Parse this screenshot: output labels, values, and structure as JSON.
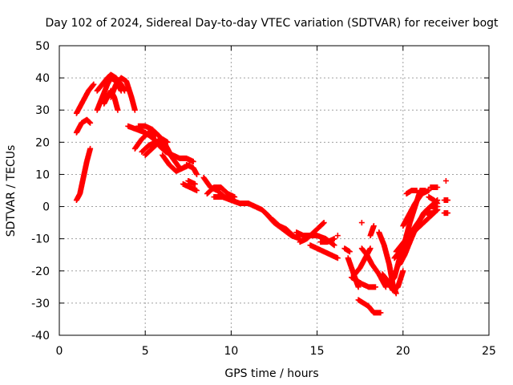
{
  "colors": {
    "series": "#ff0000",
    "background": "#ffffff",
    "grid": "#a0a0a0",
    "axis": "#000000"
  },
  "chart_data": {
    "type": "scatter",
    "title": "Day 102 of 2024, Sidereal Day-to-day VTEC variation (SDTVAR) for receiver bogt",
    "xlabel": "GPS time / hours",
    "ylabel": "SDTVAR / TECUs",
    "xlim": [
      0,
      25
    ],
    "ylim": [
      -40,
      50
    ],
    "xticks": [
      0,
      5,
      10,
      15,
      20,
      25
    ],
    "yticks": [
      -40,
      -30,
      -20,
      -10,
      0,
      10,
      20,
      30,
      40,
      50
    ],
    "grid": true,
    "marker": "+",
    "series": [
      {
        "name": "SDTVAR",
        "segments": [
          [
            [
              1.0,
              2
            ],
            [
              1.2,
              4
            ],
            [
              1.4,
              9
            ],
            [
              1.6,
              14
            ],
            [
              1.8,
              18
            ]
          ],
          [
            [
              1.0,
              29
            ],
            [
              1.3,
              32
            ],
            [
              1.7,
              36
            ],
            [
              2.0,
              38
            ]
          ],
          [
            [
              1.0,
              23
            ],
            [
              1.3,
              26
            ],
            [
              1.6,
              27
            ],
            [
              1.8,
              26
            ]
          ],
          [
            [
              2.2,
              30
            ],
            [
              2.5,
              34
            ],
            [
              2.8,
              38
            ],
            [
              3.0,
              40
            ],
            [
              3.3,
              39
            ],
            [
              3.6,
              36
            ]
          ],
          [
            [
              2.2,
              36
            ],
            [
              2.5,
              38
            ],
            [
              2.8,
              40
            ],
            [
              3.0,
              41
            ],
            [
              3.3,
              40
            ],
            [
              3.6,
              38
            ],
            [
              3.8,
              36
            ]
          ],
          [
            [
              3.0,
              34
            ],
            [
              3.3,
              38
            ],
            [
              3.6,
              40
            ],
            [
              3.9,
              39
            ],
            [
              4.2,
              34
            ],
            [
              4.4,
              30
            ]
          ],
          [
            [
              2.6,
              32
            ],
            [
              2.8,
              34
            ],
            [
              3.0,
              36
            ],
            [
              3.2,
              34
            ],
            [
              3.4,
              30
            ]
          ],
          [
            [
              4.0,
              25
            ],
            [
              4.5,
              24
            ],
            [
              5.0,
              23
            ],
            [
              5.5,
              21
            ],
            [
              6.0,
              18
            ]
          ],
          [
            [
              4.4,
              18
            ],
            [
              4.8,
              21
            ],
            [
              5.2,
              23
            ],
            [
              5.6,
              22
            ]
          ],
          [
            [
              4.6,
              25
            ],
            [
              5.0,
              25
            ],
            [
              5.4,
              24
            ],
            [
              5.8,
              22
            ],
            [
              6.2,
              19
            ],
            [
              6.5,
              16
            ]
          ],
          [
            [
              5.0,
              16
            ],
            [
              5.4,
              18
            ],
            [
              5.8,
              20
            ],
            [
              6.2,
              18
            ],
            [
              6.6,
              15
            ],
            [
              7.0,
              12
            ]
          ],
          [
            [
              5.8,
              19
            ],
            [
              6.2,
              17
            ],
            [
              6.6,
              16
            ],
            [
              7.0,
              15
            ],
            [
              7.4,
              15
            ],
            [
              7.8,
              14
            ]
          ],
          [
            [
              6.0,
              16
            ],
            [
              6.4,
              13
            ],
            [
              6.8,
              11
            ],
            [
              7.2,
              12
            ],
            [
              7.6,
              13
            ]
          ],
          [
            [
              7.2,
              7
            ],
            [
              7.6,
              6
            ],
            [
              8.0,
              5
            ]
          ],
          [
            [
              7.4,
              13
            ],
            [
              7.8,
              12
            ],
            [
              8.0,
              10
            ]
          ],
          [
            [
              8.4,
              9
            ],
            [
              8.8,
              6
            ],
            [
              9.2,
              5
            ],
            [
              9.6,
              3
            ],
            [
              10.0,
              2
            ]
          ],
          [
            [
              8.6,
              4
            ],
            [
              9.0,
              6
            ],
            [
              9.4,
              6
            ],
            [
              9.8,
              4
            ],
            [
              10.2,
              3
            ]
          ],
          [
            [
              9.0,
              3
            ],
            [
              9.5,
              3
            ],
            [
              10.0,
              2
            ],
            [
              10.5,
              1
            ],
            [
              11.0,
              1
            ]
          ],
          [
            [
              10.5,
              1
            ],
            [
              11.0,
              1
            ],
            [
              11.4,
              0
            ],
            [
              11.8,
              -1
            ],
            [
              12.2,
              -3
            ]
          ],
          [
            [
              12.0,
              -2
            ],
            [
              12.5,
              -5
            ],
            [
              13.0,
              -7
            ],
            [
              13.5,
              -9
            ],
            [
              14.0,
              -10
            ]
          ],
          [
            [
              12.4,
              -4
            ],
            [
              12.8,
              -6
            ],
            [
              13.2,
              -7
            ],
            [
              13.6,
              -9
            ]
          ],
          [
            [
              13.8,
              -8
            ],
            [
              14.2,
              -9
            ],
            [
              14.6,
              -9
            ],
            [
              15.0,
              -9
            ],
            [
              15.5,
              -10
            ],
            [
              16.0,
              -12
            ]
          ],
          [
            [
              14.0,
              -11
            ],
            [
              14.4,
              -10
            ],
            [
              14.8,
              -8
            ],
            [
              15.2,
              -6
            ],
            [
              15.4,
              -5
            ]
          ],
          [
            [
              14.6,
              -12
            ],
            [
              15.0,
              -13
            ],
            [
              15.4,
              -14
            ],
            [
              15.8,
              -15
            ],
            [
              16.2,
              -16
            ]
          ],
          [
            [
              15.2,
              -11
            ],
            [
              15.6,
              -11
            ],
            [
              16.0,
              -10
            ]
          ],
          [
            [
              16.8,
              -16
            ],
            [
              17.0,
              -19
            ],
            [
              17.2,
              -22
            ],
            [
              17.4,
              -25
            ]
          ],
          [
            [
              17.0,
              -22
            ],
            [
              17.3,
              -23
            ],
            [
              17.6,
              -24
            ],
            [
              18.0,
              -25
            ],
            [
              18.4,
              -25
            ]
          ],
          [
            [
              17.2,
              -21
            ],
            [
              17.5,
              -19
            ],
            [
              17.8,
              -16
            ],
            [
              18.1,
              -13
            ]
          ],
          [
            [
              17.4,
              -29
            ],
            [
              17.7,
              -30
            ],
            [
              18.0,
              -31
            ],
            [
              18.3,
              -33
            ],
            [
              18.7,
              -33
            ]
          ],
          [
            [
              17.6,
              -13
            ],
            [
              17.9,
              -15
            ],
            [
              18.2,
              -18
            ],
            [
              18.6,
              -21
            ],
            [
              19.0,
              -25
            ]
          ],
          [
            [
              18.1,
              -9
            ],
            [
              18.3,
              -6
            ]
          ],
          [
            [
              18.6,
              -8
            ],
            [
              18.9,
              -12
            ],
            [
              19.2,
              -18
            ],
            [
              19.4,
              -24
            ],
            [
              19.6,
              -27
            ]
          ],
          [
            [
              18.8,
              -21
            ],
            [
              19.1,
              -23
            ],
            [
              19.4,
              -26
            ],
            [
              19.7,
              -25
            ],
            [
              20.0,
              -20
            ]
          ],
          [
            [
              19.2,
              -24
            ],
            [
              19.5,
              -22
            ],
            [
              19.8,
              -16
            ],
            [
              20.1,
              -11
            ],
            [
              20.4,
              -5
            ],
            [
              20.7,
              0
            ],
            [
              21.0,
              5
            ],
            [
              21.3,
              5
            ]
          ],
          [
            [
              19.6,
              -14
            ],
            [
              19.9,
              -12
            ],
            [
              20.2,
              -10
            ],
            [
              20.6,
              -7
            ],
            [
              21.0,
              -4
            ],
            [
              21.4,
              -1
            ],
            [
              21.8,
              1
            ],
            [
              22.0,
              2
            ]
          ],
          [
            [
              19.8,
              -18
            ],
            [
              20.1,
              -15
            ],
            [
              20.4,
              -11
            ],
            [
              20.8,
              -6
            ],
            [
              21.2,
              -2
            ],
            [
              21.6,
              0
            ],
            [
              22.0,
              0
            ]
          ],
          [
            [
              19.5,
              -16
            ],
            [
              19.8,
              -14
            ],
            [
              20.1,
              -13
            ],
            [
              20.4,
              -11
            ]
          ],
          [
            [
              20.0,
              -6
            ],
            [
              20.3,
              -3
            ],
            [
              20.7,
              1
            ],
            [
              21.1,
              4
            ],
            [
              21.5,
              5
            ]
          ],
          [
            [
              20.2,
              4
            ],
            [
              20.5,
              5
            ],
            [
              20.8,
              5
            ]
          ],
          [
            [
              20.6,
              -8
            ],
            [
              21.0,
              -6
            ],
            [
              21.4,
              -4
            ],
            [
              21.8,
              -2
            ],
            [
              22.0,
              -1
            ]
          ],
          [
            [
              21.5,
              3
            ],
            [
              21.8,
              2
            ],
            [
              22.0,
              1
            ]
          ],
          [
            [
              21.4,
              -2
            ],
            [
              21.7,
              -2
            ],
            [
              22.0,
              -1
            ]
          ],
          [
            [
              21.6,
              6
            ],
            [
              21.8,
              6
            ],
            [
              22.0,
              6
            ]
          ],
          [
            [
              22.4,
              2
            ],
            [
              22.6,
              2
            ]
          ],
          [
            [
              22.4,
              -2
            ],
            [
              22.6,
              -2
            ]
          ],
          [
            [
              22.5,
              8
            ]
          ],
          [
            [
              16.6,
              -13
            ],
            [
              16.9,
              -14
            ]
          ],
          [
            [
              16.2,
              -9
            ]
          ],
          [
            [
              17.6,
              -5
            ]
          ],
          [
            [
              7.5,
              8
            ],
            [
              7.9,
              7
            ]
          ],
          [
            [
              4.8,
              17
            ],
            [
              5.2,
              19
            ],
            [
              5.6,
              20
            ],
            [
              6.0,
              21
            ],
            [
              6.3,
              20
            ]
          ]
        ]
      }
    ]
  }
}
